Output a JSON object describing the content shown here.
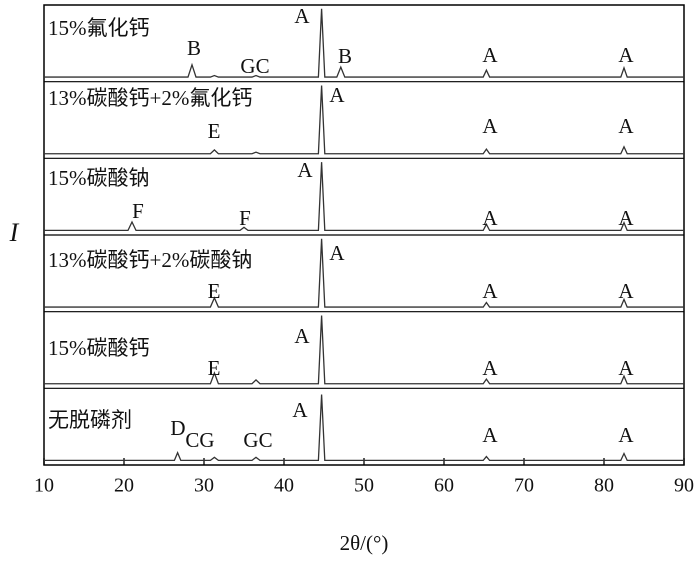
{
  "chart_data": {
    "type": "line",
    "xlabel": "2θ/(°)",
    "ylabel": "I",
    "x": [
      10,
      20.5,
      21,
      21.5,
      26.3,
      26.7,
      27.1,
      28,
      28.5,
      29,
      30.8,
      31.3,
      31.8,
      34.5,
      35,
      35.5,
      36,
      36.5,
      37,
      44.3,
      44.7,
      45.1,
      46.6,
      47.1,
      47.6,
      64.9,
      65.3,
      65.7,
      82.1,
      82.5,
      82.9,
      90
    ],
    "xlim": [
      10,
      90
    ],
    "xticks": [
      10,
      20,
      30,
      40,
      50,
      60,
      70,
      80,
      90
    ],
    "ylim": [
      0,
      100
    ],
    "stacked_panels": true,
    "series": [
      {
        "name": "15%氟化钙",
        "color": "#333333",
        "annotations": [
          "B",
          "GC",
          "A",
          "B",
          "A",
          "A"
        ],
        "values": [
          6,
          6,
          6,
          6,
          6,
          6,
          6,
          6,
          22,
          6,
          6,
          8,
          6,
          6,
          6,
          6,
          6,
          8,
          6,
          6,
          95,
          6,
          6,
          19,
          6,
          6,
          15,
          6,
          6,
          18,
          6,
          6
        ]
      },
      {
        "name": "13%碳酸钙+2%氟化钙",
        "color": "#333333",
        "annotations": [
          "E",
          "A",
          "A",
          "A"
        ],
        "values": [
          6,
          6,
          6,
          6,
          6,
          6,
          6,
          6,
          6,
          6,
          6,
          11,
          6,
          6,
          6,
          6,
          6,
          8,
          6,
          6,
          95,
          6,
          6,
          6,
          6,
          6,
          12,
          6,
          6,
          15,
          6,
          6
        ]
      },
      {
        "name": "15%碳酸钠",
        "color": "#333333",
        "annotations": [
          "F",
          "F",
          "A",
          "A",
          "A"
        ],
        "values": [
          6,
          6,
          17,
          6,
          6,
          6,
          6,
          6,
          6,
          6,
          6,
          6,
          6,
          6,
          10,
          6,
          6,
          6,
          6,
          6,
          95,
          6,
          6,
          6,
          6,
          6,
          14,
          6,
          6,
          16,
          6,
          6
        ]
      },
      {
        "name": "13%碳酸钙+2%碳酸钠",
        "color": "#333333",
        "annotations": [
          "E",
          "A",
          "A",
          "A"
        ],
        "values": [
          6,
          6,
          6,
          6,
          6,
          6,
          6,
          6,
          6,
          6,
          6,
          18,
          6,
          6,
          6,
          6,
          6,
          6,
          6,
          6,
          95,
          6,
          6,
          6,
          6,
          6,
          12,
          6,
          6,
          16,
          6,
          6
        ]
      },
      {
        "name": "15%碳酸钙",
        "color": "#333333",
        "annotations": [
          "E",
          "A",
          "A",
          "A"
        ],
        "values": [
          6,
          6,
          6,
          6,
          6,
          6,
          6,
          6,
          6,
          6,
          6,
          20,
          6,
          6,
          6,
          6,
          6,
          11,
          6,
          6,
          95,
          6,
          6,
          6,
          6,
          6,
          12,
          6,
          6,
          16,
          6,
          6
        ]
      },
      {
        "name": "无脱磷剂",
        "color": "#333333",
        "annotations": [
          "D",
          "CG",
          "GC",
          "A",
          "A",
          "A"
        ],
        "values": [
          6,
          6,
          6,
          6,
          6,
          16,
          6,
          6,
          6,
          6,
          6,
          10,
          6,
          6,
          6,
          6,
          6,
          10,
          6,
          6,
          92,
          6,
          6,
          6,
          6,
          6,
          11,
          6,
          6,
          15,
          6,
          6
        ]
      }
    ]
  }
}
